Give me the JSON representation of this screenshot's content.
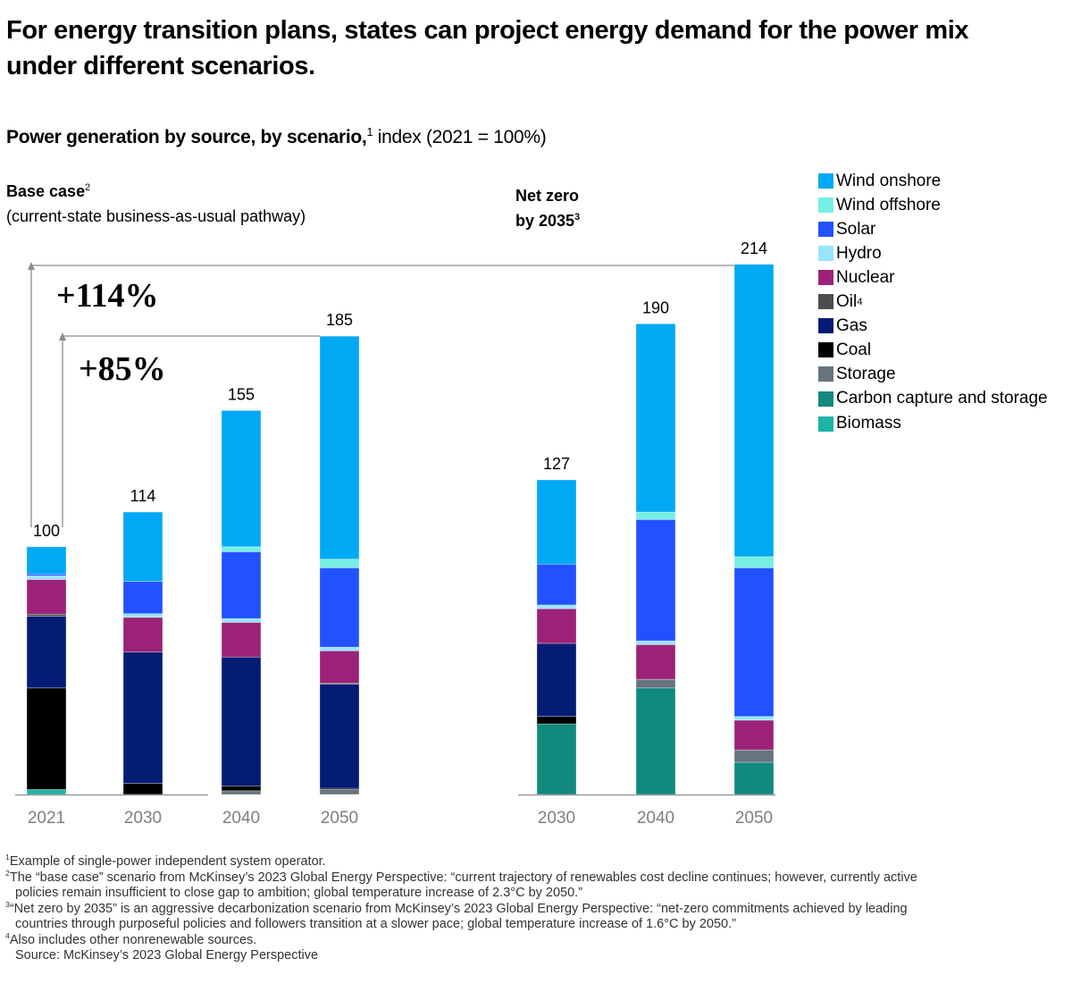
{
  "title": "For energy transition plans, states can project energy demand for the power mix under different scenarios.",
  "subtitle": {
    "bold": "Power generation by source, by scenario,",
    "sup": "1",
    "rest": " index (2021 = 100%)"
  },
  "scenarios": {
    "base": {
      "label": "Base case",
      "sup": "2",
      "sublabel": "(current-state business-as-usual pathway)"
    },
    "netzero": {
      "label_line1": "Net zero",
      "label_line2": "by 2035",
      "sup": "3"
    }
  },
  "annotations": {
    "growth_114": "+114%",
    "growth_85": "+85%"
  },
  "legend": [
    {
      "key": "wind_onshore",
      "label": "Wind onshore",
      "sup": ""
    },
    {
      "key": "wind_offshore",
      "label": "Wind offshore",
      "sup": ""
    },
    {
      "key": "solar",
      "label": "Solar",
      "sup": ""
    },
    {
      "key": "hydro",
      "label": "Hydro",
      "sup": ""
    },
    {
      "key": "nuclear",
      "label": "Nuclear",
      "sup": ""
    },
    {
      "key": "oil",
      "label": "Oil",
      "sup": "4"
    },
    {
      "key": "gas",
      "label": "Gas",
      "sup": ""
    },
    {
      "key": "coal",
      "label": "Coal",
      "sup": ""
    },
    {
      "key": "storage",
      "label": "Storage",
      "sup": ""
    },
    {
      "key": "ccs",
      "label": "Carbon capture and storage",
      "sup": ""
    },
    {
      "key": "biomass",
      "label": "Biomass",
      "sup": ""
    }
  ],
  "colors": {
    "wind_onshore": "#00a9f4",
    "wind_offshore": "#76f0e4",
    "solar": "#2251ff",
    "hydro": "#99e4ff",
    "nuclear": "#9b2277",
    "oil": "#4d4d4d",
    "gas": "#051c75",
    "coal": "#000000",
    "storage": "#67747e",
    "ccs": "#12897d",
    "biomass": "#1db4a3",
    "axis": "#9a9a9a",
    "tick_text": "#7f7f7f",
    "arrow": "#8c8c8c"
  },
  "chart_data": {
    "type": "bar",
    "stacked": true,
    "title": "Power generation by source, by scenario",
    "ylabel": "index (2021 = 100%)",
    "ylim": [
      0,
      214
    ],
    "grid": false,
    "legend_position": "right",
    "stack_order_bottom_to_top": [
      "biomass",
      "ccs",
      "storage",
      "coal",
      "gas",
      "oil",
      "nuclear",
      "hydro",
      "solar",
      "wind_offshore",
      "wind_onshore"
    ],
    "groups": [
      {
        "name": "Base case",
        "bars": [
          {
            "category": "2021",
            "total": 100,
            "values": {
              "wind_onshore": 11,
              "wind_offshore": 0,
              "solar": 0.7,
              "hydro": 1.5,
              "nuclear": 14,
              "oil": 0.8,
              "gas": 29,
              "coal": 41,
              "storage": 0,
              "ccs": 0,
              "biomass": 2
            }
          },
          {
            "category": "2030",
            "total": 114,
            "values": {
              "wind_onshore": 28,
              "wind_offshore": 0,
              "solar": 13,
              "hydro": 1.5,
              "nuclear": 14,
              "oil": 0,
              "gas": 53,
              "coal": 4.5,
              "storage": 0,
              "ccs": 0,
              "biomass": 0
            }
          },
          {
            "category": "2040",
            "total": 155,
            "values": {
              "wind_onshore": 55,
              "wind_offshore": 2,
              "solar": 27,
              "hydro": 1.5,
              "nuclear": 14,
              "oil": 0,
              "gas": 52,
              "coal": 2,
              "storage": 1.5,
              "ccs": 0,
              "biomass": 0
            }
          },
          {
            "category": "2050",
            "total": 185,
            "values": {
              "wind_onshore": 90,
              "wind_offshore": 3.5,
              "solar": 32,
              "hydro": 1.5,
              "nuclear": 13,
              "oil": 0.5,
              "gas": 42,
              "coal": 0.5,
              "storage": 2,
              "ccs": 0,
              "biomass": 0
            }
          }
        ]
      },
      {
        "name": "Net zero by 2035",
        "bars": [
          {
            "category": "2030",
            "total": 127,
            "values": {
              "wind_onshore": 34,
              "wind_offshore": 0,
              "solar": 16.5,
              "hydro": 1.5,
              "nuclear": 14,
              "oil": 0,
              "gas": 29.5,
              "coal": 3,
              "storage": 0,
              "ccs": 28.5,
              "biomass": 0
            }
          },
          {
            "category": "2040",
            "total": 190,
            "values": {
              "wind_onshore": 76,
              "wind_offshore": 3,
              "solar": 49,
              "hydro": 1.5,
              "nuclear": 14,
              "oil": 0,
              "gas": 0,
              "coal": 0,
              "storage": 3.5,
              "ccs": 43,
              "biomass": 0
            }
          },
          {
            "category": "2050",
            "total": 214,
            "values": {
              "wind_onshore": 118,
              "wind_offshore": 4.5,
              "solar": 60,
              "hydro": 1.5,
              "nuclear": 12,
              "oil": 0,
              "gas": 0,
              "coal": 0,
              "storage": 5,
              "ccs": 13,
              "biomass": 0
            }
          }
        ]
      }
    ],
    "annotations": [
      {
        "text": "+114%",
        "from": "Base case 2021",
        "to": "Net zero by 2035 2050"
      },
      {
        "text": "+85%",
        "from": "Base case 2021",
        "to": "Base case 2050"
      }
    ]
  },
  "footnotes": [
    {
      "sup": "1",
      "lines": [
        "Example of single-power independent system operator."
      ]
    },
    {
      "sup": "2",
      "lines": [
        "The “base case” scenario from McKinsey’s 2023 Global Energy Perspective: “current trajectory of renewables cost decline continues; however, currently active",
        "policies remain insufficient to close gap to ambition; global temperature increase of 2.3°C by 2050.”"
      ]
    },
    {
      "sup": "3",
      "lines": [
        "“Net zero by 2035” is an aggressive decarbonization scenario from McKinsey’s 2023 Global Energy Perspective: “net-zero commitments achieved by leading",
        "countries through purposeful policies and followers transition at a slower pace; global temperature increase of 1.6°C by 2050.”"
      ]
    },
    {
      "sup": "4",
      "lines": [
        "Also includes other nonrenewable sources."
      ]
    }
  ],
  "source": "Source: McKinsey’s 2023 Global Energy Perspective"
}
